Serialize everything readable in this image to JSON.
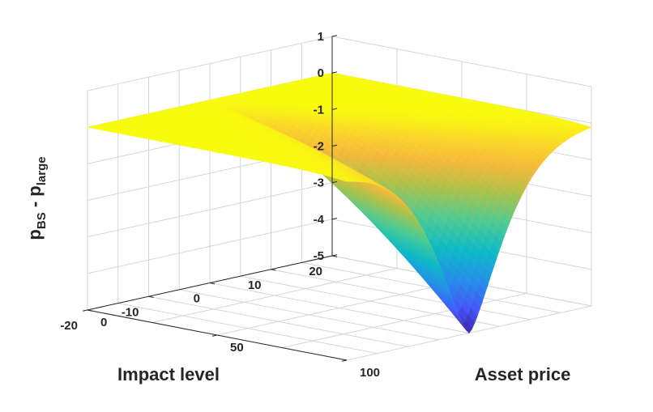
{
  "chart_data": {
    "type": "surface",
    "xlabel": "Asset price",
    "ylabel": "Impact level",
    "zlabel": {
      "main": "p",
      "sub1": "BS",
      "mid": " - p",
      "sub2": "large"
    },
    "x_ticks": [
      "0",
      "50",
      "100"
    ],
    "y_ticks": [
      "20",
      "10",
      "0",
      "-10",
      "-20"
    ],
    "z_ticks": [
      "1",
      "0",
      "-1",
      "-2",
      "-3",
      "-4",
      "-5"
    ],
    "xlim": [
      0,
      100
    ],
    "ylim": [
      -20,
      20
    ],
    "zlim": [
      -5,
      1
    ],
    "grid": true,
    "colormap": "parula",
    "surface_description": {
      "plateau_value": 0,
      "min_value": -5,
      "min_at": {
        "asset_price": 100,
        "impact_level": 0
      }
    }
  }
}
